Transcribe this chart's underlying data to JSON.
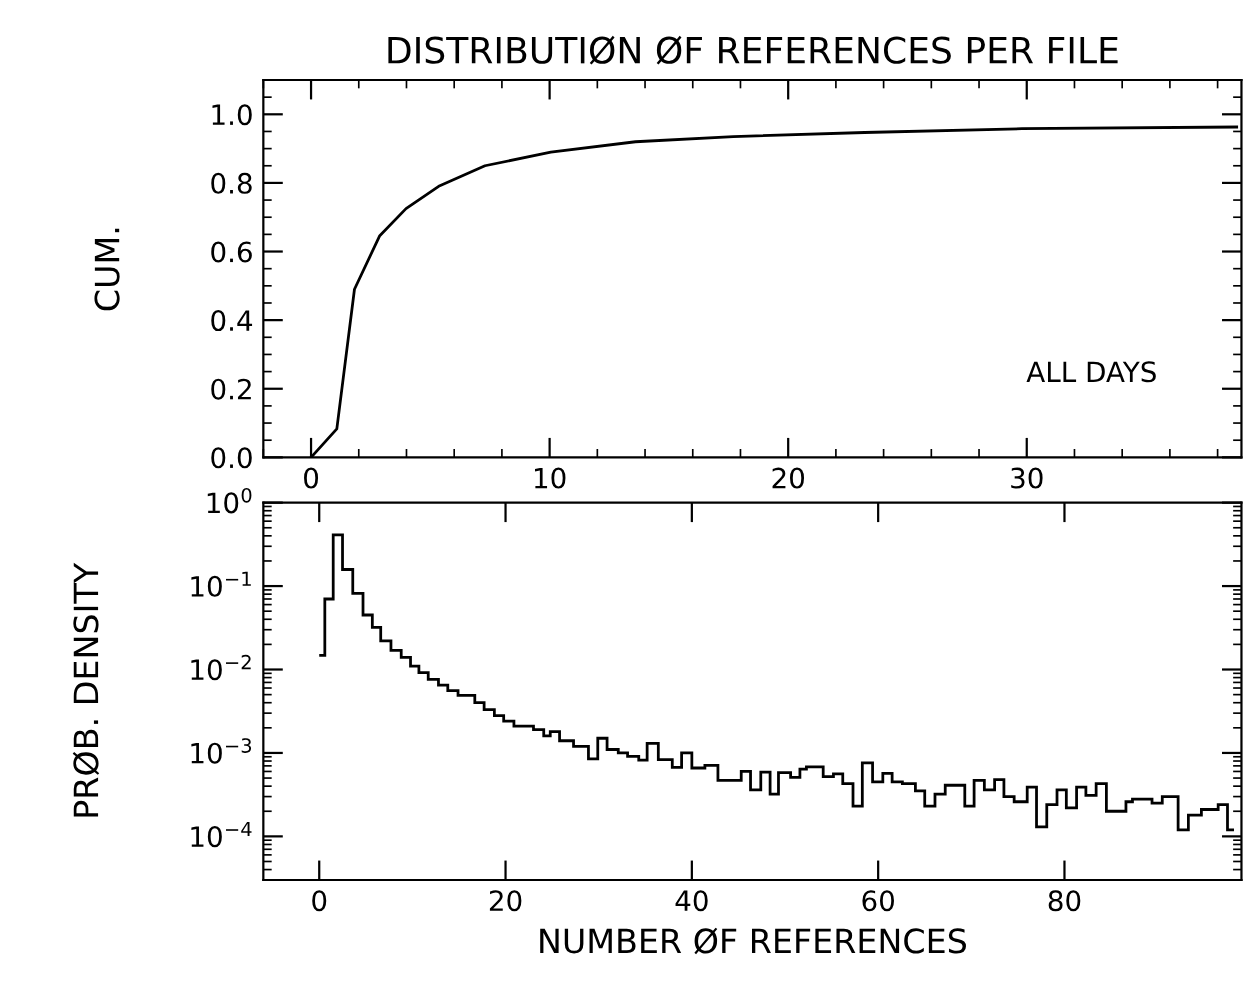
{
  "chart_data": [
    {
      "type": "line",
      "title": "DISTRIBUTIØN ØF REFERENCES PER FILE",
      "ylabel": "CUM.",
      "annotations": [
        "ALL DAYS"
      ],
      "x": [
        0,
        1.08,
        1.82,
        2.87,
        3.98,
        5.35,
        7.29,
        10.05,
        13.6,
        17.7,
        23.2,
        29.8,
        38.8
      ],
      "values": [
        0,
        0.083,
        0.49,
        0.645,
        0.725,
        0.79,
        0.85,
        0.89,
        0.92,
        0.935,
        0.947,
        0.958,
        0.963
      ],
      "color": "#000000",
      "xlim": [
        -2,
        39
      ],
      "xticks": [
        0,
        10,
        20,
        30
      ],
      "ylim": [
        0,
        1.1
      ],
      "yticks": [
        {
          "value": 0,
          "label": "0.0"
        },
        {
          "value": 0.2,
          "label": "0.2"
        },
        {
          "value": 0.4,
          "label": "0.4"
        },
        {
          "value": 0.6,
          "label": "0.6"
        },
        {
          "value": 0.8,
          "label": "0.8"
        },
        {
          "value": 1.0,
          "label": "1.0"
        }
      ],
      "grid": false,
      "legend": false
    },
    {
      "type": "histogram",
      "ylabel": "PRØB. DENSITY",
      "xlabel": "NUMBER ØF REFERENCES",
      "log": "y",
      "color": "#000000",
      "bins": [
        0,
        0.6,
        1.5,
        2.5,
        3.6,
        4.7,
        5.7,
        6.6,
        7.7,
        8.8,
        9.8,
        10.7,
        11.7,
        12.8,
        13.8,
        14.9,
        16.7,
        17.7,
        18.8,
        19.8,
        20.9,
        22.0,
        23.0,
        24.1,
        24.8,
        25.8,
        27.3,
        28.9,
        29.9,
        30.9,
        32.1,
        33.1,
        34.3,
        35.2,
        36.4,
        37.9,
        38.9,
        40.0,
        41.4,
        42.8,
        45.3,
        46.3,
        47.4,
        48.4,
        49.3,
        50.6,
        51.6,
        52.3,
        54.1,
        55.2,
        56.2,
        57.3,
        58.3,
        59.4,
        60.5,
        61.5,
        62.6,
        64.0,
        65.0,
        66.1,
        67.2,
        69.3,
        70.3,
        71.4,
        72.5,
        73.5,
        74.6,
        76.0,
        77.0,
        78.1,
        79.2,
        80.2,
        81.3,
        82.3,
        83.4,
        84.5,
        86.6,
        87.3,
        89.4,
        90.5,
        92.2,
        93.3,
        94.7,
        96.5,
        97.5,
        98.2
      ],
      "values": [
        0.0148,
        0.07,
        0.41,
        0.158,
        0.082,
        0.045,
        0.032,
        0.022,
        0.017,
        0.014,
        0.011,
        0.0092,
        0.0076,
        0.0065,
        0.0056,
        0.0049,
        0.004,
        0.0033,
        0.0028,
        0.0024,
        0.0021,
        0.0021,
        0.0019,
        0.0016,
        0.0018,
        0.0014,
        0.0012,
        0.00085,
        0.0015,
        0.0011,
        0.001,
        0.00091,
        0.00082,
        0.0013,
        0.00083,
        0.00067,
        0.001,
        0.00066,
        0.00071,
        0.00047,
        0.0006,
        0.00036,
        0.00059,
        0.00032,
        0.00058,
        0.00051,
        0.00064,
        0.00068,
        0.00052,
        0.00056,
        0.00043,
        0.00023,
        0.00076,
        0.00045,
        0.00057,
        0.00045,
        0.00043,
        0.00035,
        0.00023,
        0.00032,
        0.00041,
        0.00023,
        0.00047,
        0.00036,
        0.00048,
        0.0003,
        0.00026,
        0.00039,
        0.00013,
        0.00024,
        0.00036,
        0.00022,
        0.00039,
        0.00031,
        0.00043,
        0.0002,
        0.00026,
        0.00028,
        0.00025,
        0.0003,
        0.00012,
        0.00018,
        0.00021,
        0.00024,
        0.00012
      ],
      "xlim": [
        -6,
        99
      ],
      "xticks": [
        0,
        20,
        40,
        60,
        80
      ],
      "ylim": [
        3e-05,
        1
      ],
      "yticks": [
        {
          "value": 1,
          "label": "10$^{0}$"
        },
        {
          "value": 0.1,
          "label": "10$^{−1}$"
        },
        {
          "value": 0.01,
          "label": "10$^{−2}$"
        },
        {
          "value": 0.001,
          "label": "10$^{−3}$"
        },
        {
          "value": 0.0001,
          "label": "10$^{−4}$"
        }
      ],
      "grid": false,
      "legend": false
    }
  ]
}
